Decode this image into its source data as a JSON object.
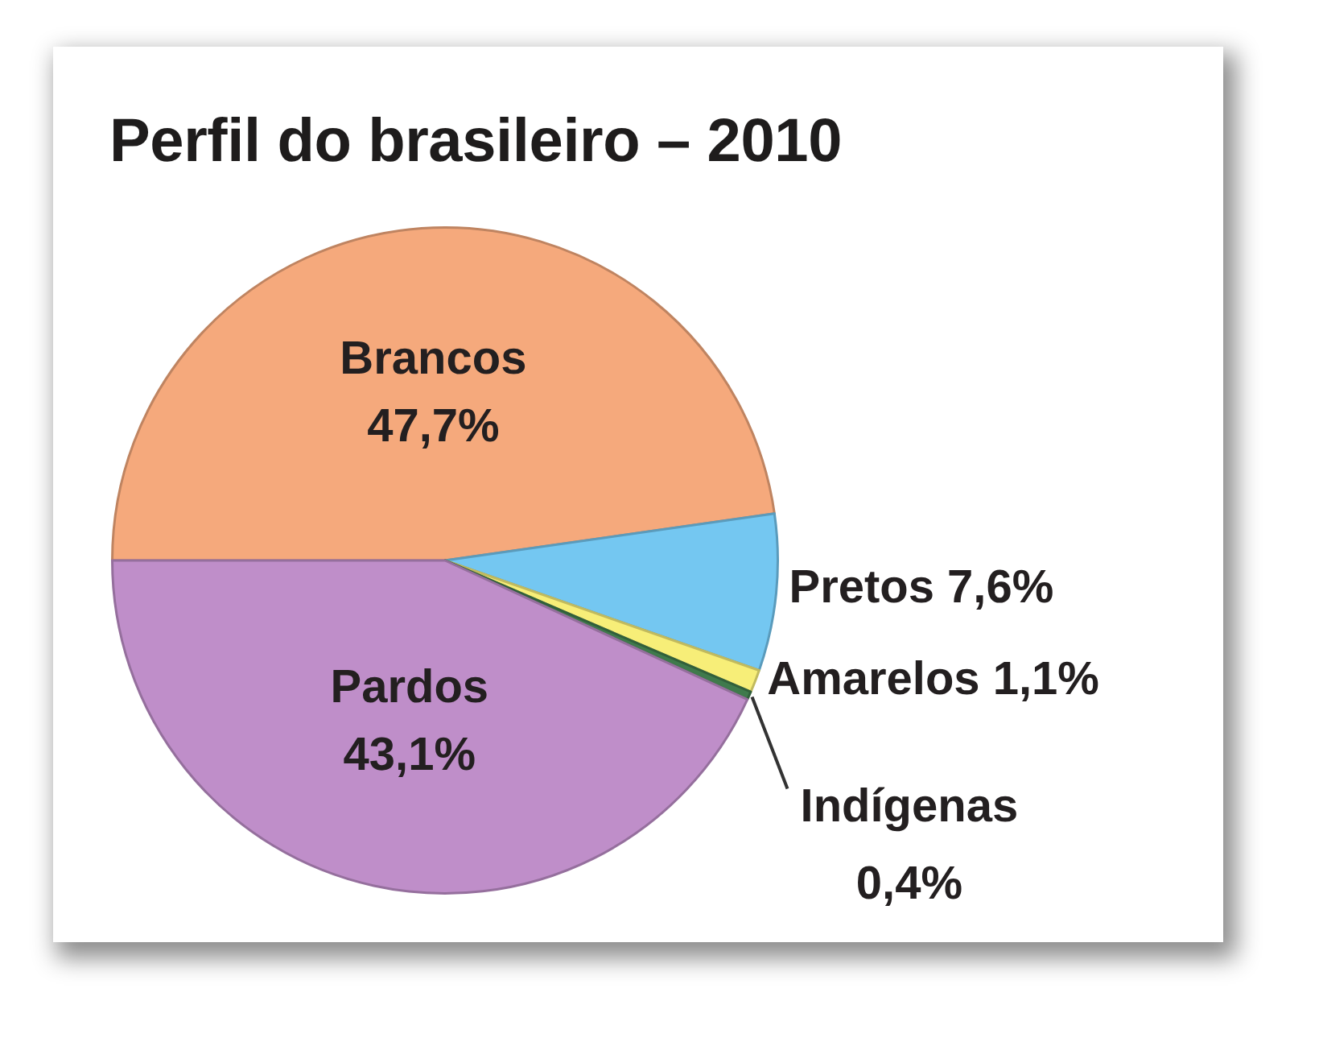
{
  "chart_data": {
    "type": "pie",
    "title": "Perfil do brasileiro – 2010",
    "categories": [
      "Brancos",
      "Pretos",
      "Amarelos",
      "Indígenas",
      "Pardos"
    ],
    "values": [
      47.7,
      7.6,
      1.1,
      0.4,
      43.1
    ],
    "colors": [
      "#f5a97c",
      "#74c7f1",
      "#f7ee78",
      "#3f7a4c",
      "#bf8ec9"
    ],
    "value_labels": [
      "47,7%",
      "7,6%",
      "1,1%",
      "0,4%",
      "43,1%"
    ]
  }
}
